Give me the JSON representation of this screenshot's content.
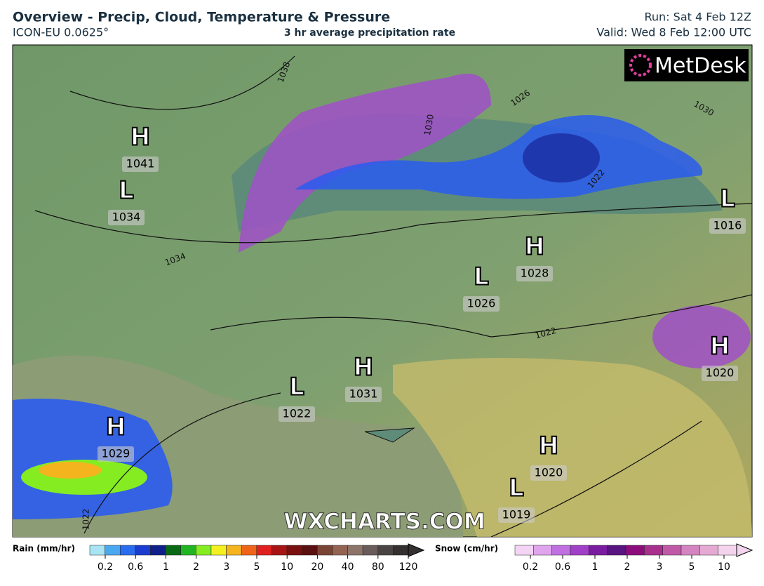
{
  "header": {
    "title": "Overview - Precip, Cloud, Temperature & Pressure",
    "model": "ICON-EU 0.0625°",
    "field": "3 hr average precipitation rate",
    "run": "Run: Sat 4 Feb 12Z",
    "valid": "Valid: Wed 8 Feb 12:00 UTC"
  },
  "logo": "MetDesk",
  "watermark": "WXCHARTS.COM",
  "pressure_centers": [
    {
      "type": "H",
      "value": 1041
    },
    {
      "type": "L",
      "value": 1034
    },
    {
      "type": "L",
      "value": 1016
    },
    {
      "type": "H",
      "value": 1028
    },
    {
      "type": "L",
      "value": 1026
    },
    {
      "type": "H",
      "value": 1020
    },
    {
      "type": "H",
      "value": 1031
    },
    {
      "type": "L",
      "value": 1022
    },
    {
      "type": "H",
      "value": 1029
    },
    {
      "type": "H",
      "value": 1020
    },
    {
      "type": "L",
      "value": 1019
    }
  ],
  "isobar_labels": [
    1038,
    1030,
    1026,
    1030,
    1022,
    1034,
    1022,
    1022
  ],
  "legend": {
    "rain": {
      "title": "Rain (mm/hr)",
      "ticks": [
        0.2,
        0.6,
        1,
        2,
        3,
        5,
        10,
        20,
        40,
        80,
        120
      ],
      "colors": [
        "#a8e4f4",
        "#4aa8f0",
        "#2a6cf0",
        "#1a3cd0",
        "#10208a",
        "#0a6a14",
        "#22b422",
        "#86ec22",
        "#f4f020",
        "#f4b41e",
        "#f0641a",
        "#e0201e",
        "#a81414",
        "#781010",
        "#5a1010",
        "#7a4434",
        "#946452",
        "#8c7468",
        "#6a5c5a",
        "#4a4444",
        "#343030"
      ]
    },
    "snow": {
      "title": "Snow (cm/hr)",
      "ticks": [
        0.2,
        0.6,
        1,
        2,
        3,
        5,
        10
      ],
      "colors": [
        "#f4d4f4",
        "#e0a4ec",
        "#c070e0",
        "#a040c8",
        "#7a1ca0",
        "#581480",
        "#8c0c7c",
        "#a8308c",
        "#c05aa8",
        "#d484c0",
        "#e4aad4",
        "#f4d4ec"
      ]
    }
  }
}
